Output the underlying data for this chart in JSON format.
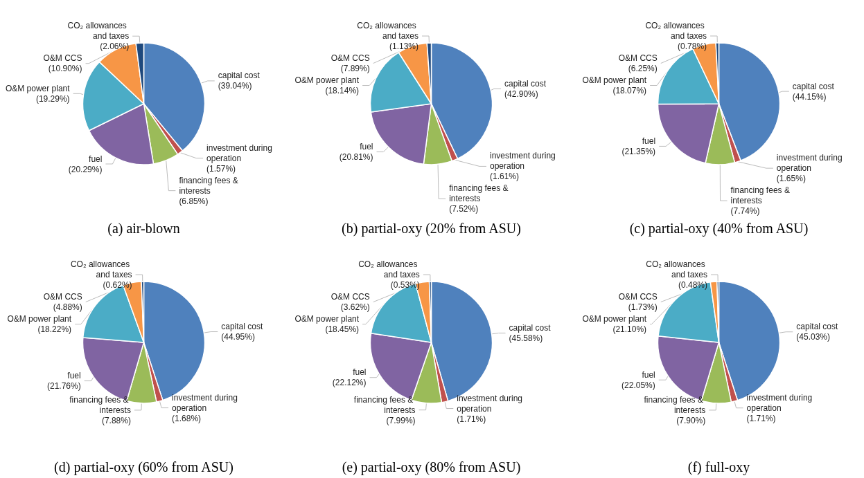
{
  "chart_data": [
    {
      "type": "pie",
      "title": "(a) air-blown",
      "categories": [
        "capital cost",
        "investment during operation",
        "financing fees & interests",
        "fuel",
        "O&M power plant",
        "O&M CCS",
        "CO₂ allowances and taxes"
      ],
      "values": [
        39.04,
        1.57,
        6.85,
        20.29,
        19.29,
        10.9,
        2.06
      ],
      "value_labels": [
        "(39.04%)",
        "(1.57%)",
        "(6.85%)",
        "(20.29%)",
        "(19.29%)",
        "(10.90%)",
        "(2.06%)"
      ],
      "colors": [
        "#4f81bd",
        "#c0504d",
        "#9bbb59",
        "#8064a2",
        "#4bacc6",
        "#f79646",
        "#1f497d"
      ]
    },
    {
      "type": "pie",
      "title": "(b) partial-oxy (20% from ASU)",
      "categories": [
        "capital cost",
        "investment during operation",
        "financing fees & interests",
        "fuel",
        "O&M power plant",
        "O&M CCS",
        "CO₂ allowances and taxes"
      ],
      "values": [
        42.9,
        1.61,
        7.52,
        20.81,
        18.14,
        7.89,
        1.13
      ],
      "value_labels": [
        "(42.90%)",
        "(1.61%)",
        "(7.52%)",
        "(20.81%)",
        "(18.14%)",
        "(7.89%)",
        "(1.13%)"
      ],
      "colors": [
        "#4f81bd",
        "#c0504d",
        "#9bbb59",
        "#8064a2",
        "#4bacc6",
        "#f79646",
        "#1f497d"
      ]
    },
    {
      "type": "pie",
      "title": "(c) partial-oxy (40% from ASU)",
      "categories": [
        "capital cost",
        "investment during operation",
        "financing fees & interests",
        "fuel",
        "O&M power plant",
        "O&M CCS",
        "CO₂ allowances and taxes"
      ],
      "values": [
        44.15,
        1.65,
        7.74,
        21.35,
        18.07,
        6.25,
        0.78
      ],
      "value_labels": [
        "(44.15%)",
        "(1.65%)",
        "(7.74%)",
        "(21.35%)",
        "(18.07%)",
        "(6.25%)",
        "(0.78%)"
      ],
      "colors": [
        "#4f81bd",
        "#c0504d",
        "#9bbb59",
        "#8064a2",
        "#4bacc6",
        "#f79646",
        "#1f497d"
      ]
    },
    {
      "type": "pie",
      "title": "(d) partial-oxy (60% from ASU)",
      "categories": [
        "capital cost",
        "investment during operation",
        "financing fees & interests",
        "fuel",
        "O&M power plant",
        "O&M CCS",
        "CO₂ allowances and taxes"
      ],
      "values": [
        44.95,
        1.68,
        7.88,
        21.76,
        18.22,
        4.88,
        0.62
      ],
      "value_labels": [
        "(44.95%)",
        "(1.68%)",
        "(7.88%)",
        "(21.76%)",
        "(18.22%)",
        "(4.88%)",
        "(0.62%)"
      ],
      "colors": [
        "#4f81bd",
        "#c0504d",
        "#9bbb59",
        "#8064a2",
        "#4bacc6",
        "#f79646",
        "#1f497d"
      ]
    },
    {
      "type": "pie",
      "title": "(e) partial-oxy (80% from ASU)",
      "categories": [
        "capital cost",
        "investment during operation",
        "financing fees & interests",
        "fuel",
        "O&M power plant",
        "O&M CCS",
        "CO₂ allowances and taxes"
      ],
      "values": [
        45.58,
        1.71,
        7.99,
        22.12,
        18.45,
        3.62,
        0.53
      ],
      "value_labels": [
        "(45.58%)",
        "(1.71%)",
        "(7.99%)",
        "(22.12%)",
        "(18.45%)",
        "(3.62%)",
        "(0.53%)"
      ],
      "colors": [
        "#4f81bd",
        "#c0504d",
        "#9bbb59",
        "#8064a2",
        "#4bacc6",
        "#f79646",
        "#1f497d"
      ]
    },
    {
      "type": "pie",
      "title": "(f) full-oxy",
      "categories": [
        "capital cost",
        "investment during operation",
        "financing fees & interests",
        "fuel",
        "O&M power plant",
        "O&M CCS",
        "CO₂ allowances and taxes"
      ],
      "values": [
        45.03,
        1.71,
        7.9,
        22.05,
        21.1,
        1.73,
        0.48
      ],
      "value_labels": [
        "(45.03%)",
        "(1.71%)",
        "(7.90%)",
        "(22.05%)",
        "(21.10%)",
        "(1.73%)",
        "(0.48%)"
      ],
      "colors": [
        "#4f81bd",
        "#c0504d",
        "#9bbb59",
        "#8064a2",
        "#4bacc6",
        "#f79646",
        "#1f497d"
      ]
    }
  ]
}
